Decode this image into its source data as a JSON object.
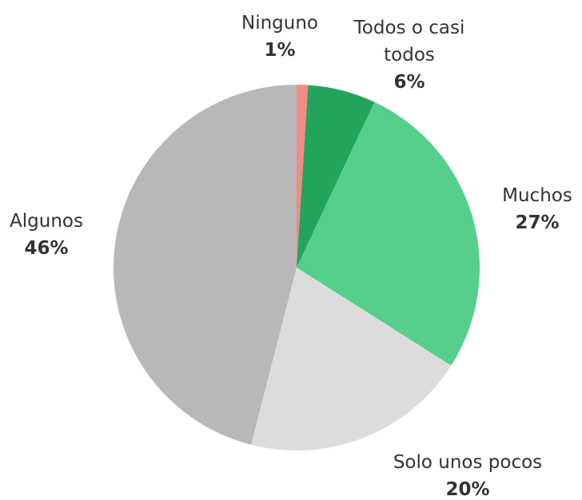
{
  "chart_data": {
    "type": "pie",
    "categories": [
      "Ninguno",
      "Todos o casi todos",
      "Muchos",
      "Solo unos pocos",
      "Algunos"
    ],
    "values": [
      1,
      6,
      27,
      20,
      46
    ],
    "value_labels": [
      "1%",
      "6%",
      "27%",
      "20%",
      "46%"
    ],
    "colors": [
      "#f28b82",
      "#22a45d",
      "#57cf8c",
      "#dcdcdc",
      "#b8b8b8"
    ]
  }
}
